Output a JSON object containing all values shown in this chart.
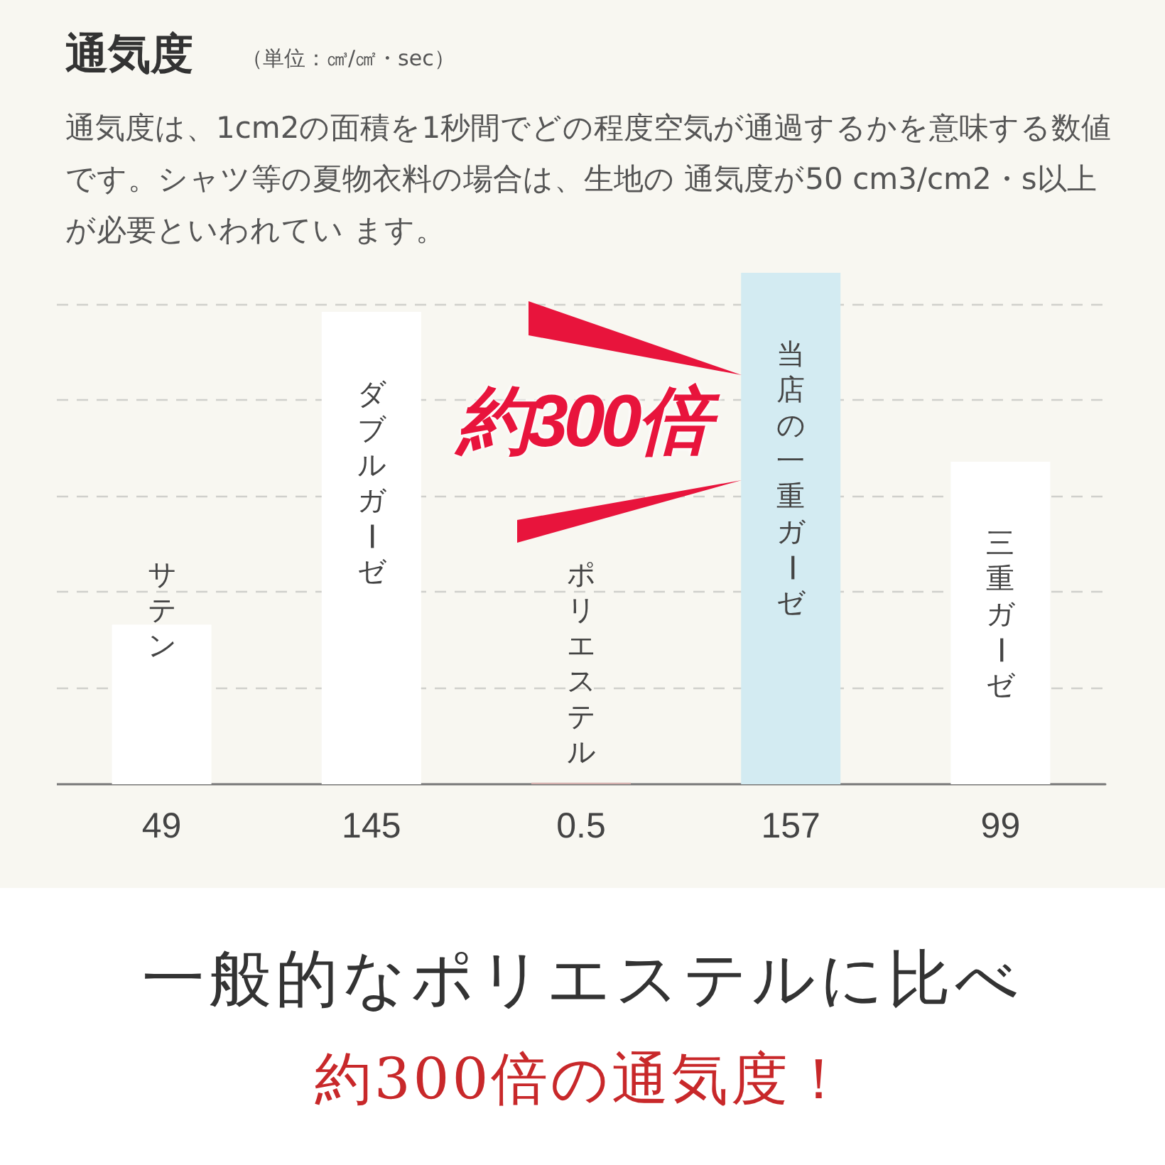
{
  "chart_data": {
    "type": "bar",
    "title": "通気度",
    "subtitle": "（単位：㎤/㎠・sec）",
    "annotations": [
      "通気度は、1cm2の面積を1秒間でどの程度空気が通過するかを意味する数値です。シャツ等の夏物衣料の場合は、生地の 通気度が50 cm3/cm2・s以上が必要といわれてい ます。",
      "約300倍",
      "一般的なポリエステルに比べ",
      "約300倍の通気度！"
    ],
    "categories": [
      "サテン",
      "ダブルガーゼ",
      "ポリエステル",
      "当店の一重ガーゼ",
      "三重ガーゼ"
    ],
    "values": [
      49,
      145,
      0.5,
      157,
      99
    ],
    "colors": [
      "#ffffff",
      "#ffffff",
      "#d4b0ae",
      "#d3ebf2",
      "#ffffff"
    ],
    "ylim": [
      0,
      157
    ],
    "yticks": [
      {
        "value": 29.5,
        "label": null
      },
      {
        "value": 59,
        "label": null
      },
      {
        "value": 88.5,
        "label": null
      },
      {
        "value": 118,
        "label": null
      },
      {
        "value": 147.5,
        "label": null
      }
    ],
    "grid": "y",
    "data_labels": true,
    "tick_labels": false
  }
}
